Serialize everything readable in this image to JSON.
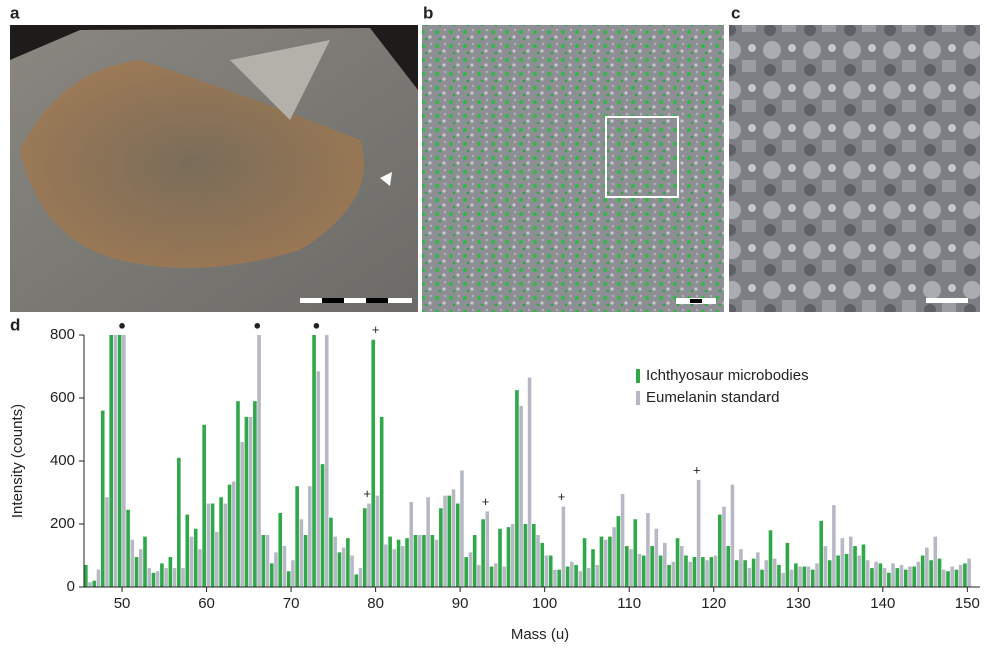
{
  "panels": [
    "a",
    "b",
    "c"
  ],
  "chart_data": {
    "type": "bar",
    "panel_label": "d",
    "xlabel": "Mass (u)",
    "ylabel": "Intensity (counts)",
    "x": [
      46,
      47,
      48,
      49,
      50,
      51,
      52,
      53,
      54,
      55,
      56,
      57,
      58,
      59,
      60,
      61,
      62,
      63,
      64,
      65,
      66,
      67,
      68,
      69,
      70,
      71,
      72,
      73,
      74,
      75,
      76,
      77,
      78,
      79,
      80,
      81,
      82,
      83,
      84,
      85,
      86,
      87,
      88,
      89,
      90,
      91,
      92,
      93,
      94,
      95,
      96,
      97,
      98,
      99,
      100,
      101,
      102,
      103,
      104,
      105,
      106,
      107,
      108,
      109,
      110,
      111,
      112,
      113,
      114,
      115,
      116,
      117,
      118,
      119,
      120,
      121,
      122,
      123,
      124,
      125,
      126,
      127,
      128,
      129,
      130,
      131,
      132,
      133,
      134,
      135,
      136,
      137,
      138,
      139,
      140,
      141,
      142,
      143,
      144,
      145,
      146,
      147,
      148,
      149,
      150
    ],
    "series": [
      {
        "name": "Ichthyosaur microbodies",
        "color": "#2fa84a",
        "values": [
          70,
          20,
          560,
          800,
          800,
          245,
          95,
          160,
          45,
          75,
          95,
          410,
          230,
          185,
          515,
          265,
          285,
          325,
          590,
          540,
          590,
          165,
          75,
          235,
          50,
          320,
          165,
          800,
          390,
          220,
          110,
          155,
          40,
          250,
          785,
          540,
          160,
          150,
          155,
          165,
          165,
          165,
          250,
          290,
          265,
          95,
          165,
          215,
          65,
          185,
          190,
          625,
          200,
          200,
          140,
          100,
          55,
          65,
          70,
          155,
          120,
          160,
          160,
          225,
          130,
          215,
          100,
          130,
          100,
          70,
          155,
          100,
          95,
          95,
          95,
          230,
          130,
          85,
          85,
          90,
          55,
          180,
          70,
          140,
          75,
          65,
          55,
          210,
          85,
          100,
          105,
          130,
          135,
          60,
          75,
          45,
          60,
          55,
          65,
          100,
          85,
          90,
          50,
          55,
          75
        ]
      },
      {
        "name": "Eumelanin standard",
        "color": "#b6b9c4",
        "values": [
          15,
          55,
          285,
          800,
          800,
          150,
          120,
          60,
          50,
          60,
          60,
          60,
          160,
          120,
          265,
          175,
          265,
          335,
          460,
          540,
          800,
          165,
          110,
          130,
          85,
          215,
          320,
          685,
          800,
          160,
          125,
          100,
          60,
          265,
          290,
          135,
          120,
          130,
          270,
          165,
          285,
          150,
          290,
          310,
          370,
          110,
          70,
          240,
          75,
          65,
          200,
          575,
          665,
          165,
          100,
          55,
          255,
          80,
          50,
          60,
          70,
          150,
          190,
          295,
          120,
          105,
          235,
          185,
          140,
          80,
          130,
          80,
          340,
          85,
          100,
          255,
          325,
          120,
          60,
          110,
          85,
          90,
          45,
          55,
          65,
          65,
          75,
          130,
          260,
          155,
          160,
          100,
          85,
          80,
          60,
          75,
          70,
          65,
          80,
          125,
          160,
          55,
          65,
          70,
          90
        ]
      }
    ],
    "annotations": [
      {
        "text": "●",
        "x": 50
      },
      {
        "text": "●",
        "x": 66
      },
      {
        "text": "●",
        "x": 73
      },
      {
        "text": "+",
        "x": 80
      },
      {
        "text": "+",
        "x": 79
      },
      {
        "text": "+",
        "x": 93
      },
      {
        "text": "+",
        "x": 102
      },
      {
        "text": "+",
        "x": 118
      }
    ],
    "xlim": [
      45.5,
      151.5
    ],
    "ylim": [
      0,
      800
    ],
    "xticks": [
      50,
      60,
      70,
      80,
      90,
      100,
      110,
      120,
      130,
      140,
      150
    ],
    "yticks": [
      0,
      200,
      400,
      600,
      800
    ]
  }
}
